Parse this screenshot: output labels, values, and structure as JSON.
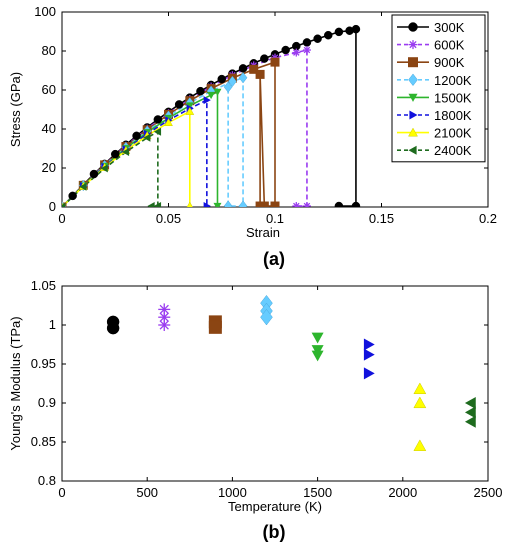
{
  "chart_data": [
    {
      "panel_label": "(a)",
      "type": "line",
      "xlabel": "Strain",
      "ylabel": "Stress (GPa)",
      "xlim": [
        0,
        0.2
      ],
      "ylim": [
        0,
        100
      ],
      "xticks": [
        "0",
        "0.05",
        "0.1",
        "0.15",
        "0.2"
      ],
      "yticks": [
        "0",
        "20",
        "40",
        "60",
        "80",
        "100"
      ],
      "legend_position": "top-right",
      "grid": false,
      "series": [
        {
          "name": "300K",
          "color": "#000000",
          "marker": "circle",
          "linestyle": "solid",
          "x": [
            0,
            0.005,
            0.01,
            0.015,
            0.02,
            0.025,
            0.03,
            0.035,
            0.04,
            0.045,
            0.05,
            0.055,
            0.06,
            0.065,
            0.07,
            0.075,
            0.08,
            0.085,
            0.09,
            0.095,
            0.1,
            0.105,
            0.11,
            0.115,
            0.12,
            0.125,
            0.13,
            0.135,
            0.138,
            0.138,
            0.13
          ],
          "y": [
            0,
            5.7,
            11.4,
            16.9,
            22.1,
            27.1,
            31.9,
            36.5,
            40.8,
            44.9,
            48.8,
            52.6,
            56.1,
            59.4,
            62.6,
            65.6,
            68.4,
            71.1,
            73.7,
            76.1,
            78.3,
            80.5,
            82.5,
            84.4,
            86.3,
            88.1,
            89.8,
            90.4,
            91.2,
            0.5,
            0.5
          ]
        },
        {
          "name": "600K",
          "color": "#9a3cf0",
          "marker": "star",
          "linestyle": "dashed",
          "x": [
            0,
            0.01,
            0.02,
            0.03,
            0.04,
            0.05,
            0.06,
            0.07,
            0.08,
            0.09,
            0.1,
            0.11,
            0.115,
            0.115,
            0.11
          ],
          "y": [
            0,
            11.2,
            21.8,
            31.4,
            40.2,
            48.1,
            55.3,
            61.8,
            67.6,
            72.6,
            76.6,
            79.2,
            80.5,
            0.5,
            0.5
          ]
        },
        {
          "name": "900K",
          "color": "#8b4513",
          "marker": "square",
          "linestyle": "solid",
          "x": [
            0,
            0.01,
            0.02,
            0.03,
            0.04,
            0.05,
            0.06,
            0.07,
            0.08,
            0.09,
            0.1,
            0.1,
            0.095,
            0.093,
            0.093
          ],
          "y": [
            0,
            11.1,
            21.6,
            31.0,
            39.6,
            47.5,
            54.5,
            60.7,
            66.1,
            70.6,
            74.3,
            0.5,
            0.5,
            68.0,
            0.5
          ]
        },
        {
          "name": "1200K",
          "color": "#66ccff",
          "marker": "diamond",
          "linestyle": "dashed",
          "x": [
            0,
            0.01,
            0.02,
            0.03,
            0.04,
            0.05,
            0.06,
            0.07,
            0.08,
            0.085,
            0.085,
            0.078,
            0.078
          ],
          "y": [
            0,
            11.0,
            21.3,
            30.6,
            39.0,
            46.6,
            53.4,
            59.4,
            64.4,
            66.3,
            0.5,
            0.5,
            61.5
          ]
        },
        {
          "name": "1500K",
          "color": "#2db52d",
          "marker": "triangle-down",
          "linestyle": "solid",
          "x": [
            0,
            0.01,
            0.02,
            0.03,
            0.04,
            0.05,
            0.06,
            0.07,
            0.073,
            0.073
          ],
          "y": [
            0,
            10.9,
            21.0,
            30.1,
            38.3,
            45.6,
            52.0,
            57.4,
            59.0,
            0.5
          ]
        },
        {
          "name": "1800K",
          "color": "#1111dd",
          "marker": "triangle-right",
          "linestyle": "dashed",
          "x": [
            0,
            0.01,
            0.02,
            0.03,
            0.04,
            0.05,
            0.06,
            0.068,
            0.068
          ],
          "y": [
            0,
            10.8,
            20.7,
            29.6,
            37.5,
            44.5,
            50.5,
            54.8,
            0.5
          ]
        },
        {
          "name": "2100K",
          "color": "#ffff00",
          "marker": "triangle-up",
          "linestyle": "solid",
          "x": [
            0,
            0.01,
            0.02,
            0.03,
            0.04,
            0.05,
            0.06,
            0.06
          ],
          "y": [
            0,
            10.6,
            20.3,
            29.0,
            36.6,
            43.3,
            49.0,
            0.5
          ]
        },
        {
          "name": "2400K",
          "color": "#1e6b1e",
          "marker": "triangle-left",
          "linestyle": "dashed",
          "x": [
            0,
            0.01,
            0.02,
            0.03,
            0.04,
            0.045,
            0.045,
            0.042
          ],
          "y": [
            0,
            10.4,
            19.8,
            28.2,
            35.5,
            38.6,
            0.5,
            0.5
          ]
        }
      ]
    },
    {
      "panel_label": "(b)",
      "type": "scatter",
      "xlabel": "Temperature (K)",
      "ylabel": "Young's Modulus (TPa)",
      "xlim": [
        0,
        2500
      ],
      "ylim": [
        0.8,
        1.05
      ],
      "xticks": [
        "0",
        "500",
        "1000",
        "1500",
        "2000",
        "2500"
      ],
      "yticks": [
        "0.8",
        "0.85",
        "0.9",
        "0.95",
        "1",
        "1.05"
      ],
      "grid": false,
      "series": [
        {
          "temperature": 300,
          "color": "#000000",
          "marker": "circle",
          "values": [
            1.004,
            0.996
          ]
        },
        {
          "temperature": 600,
          "color": "#9a3cf0",
          "marker": "star",
          "values": [
            1.02,
            1.01,
            1.0
          ]
        },
        {
          "temperature": 900,
          "color": "#8b4513",
          "marker": "square",
          "values": [
            1.004,
            0.997
          ]
        },
        {
          "temperature": 1200,
          "color": "#66ccff",
          "marker": "diamond",
          "values": [
            1.028,
            1.018,
            1.01
          ]
        },
        {
          "temperature": 1500,
          "color": "#2db52d",
          "marker": "triangle-down",
          "values": [
            0.984,
            0.968,
            0.961
          ]
        },
        {
          "temperature": 1800,
          "color": "#1111dd",
          "marker": "triangle-right",
          "values": [
            0.975,
            0.962,
            0.938
          ]
        },
        {
          "temperature": 2100,
          "color": "#ffff00",
          "marker": "triangle-up",
          "values": [
            0.918,
            0.9,
            0.845
          ]
        },
        {
          "temperature": 2400,
          "color": "#1e6b1e",
          "marker": "triangle-left",
          "values": [
            0.9,
            0.888,
            0.876
          ]
        }
      ]
    }
  ]
}
